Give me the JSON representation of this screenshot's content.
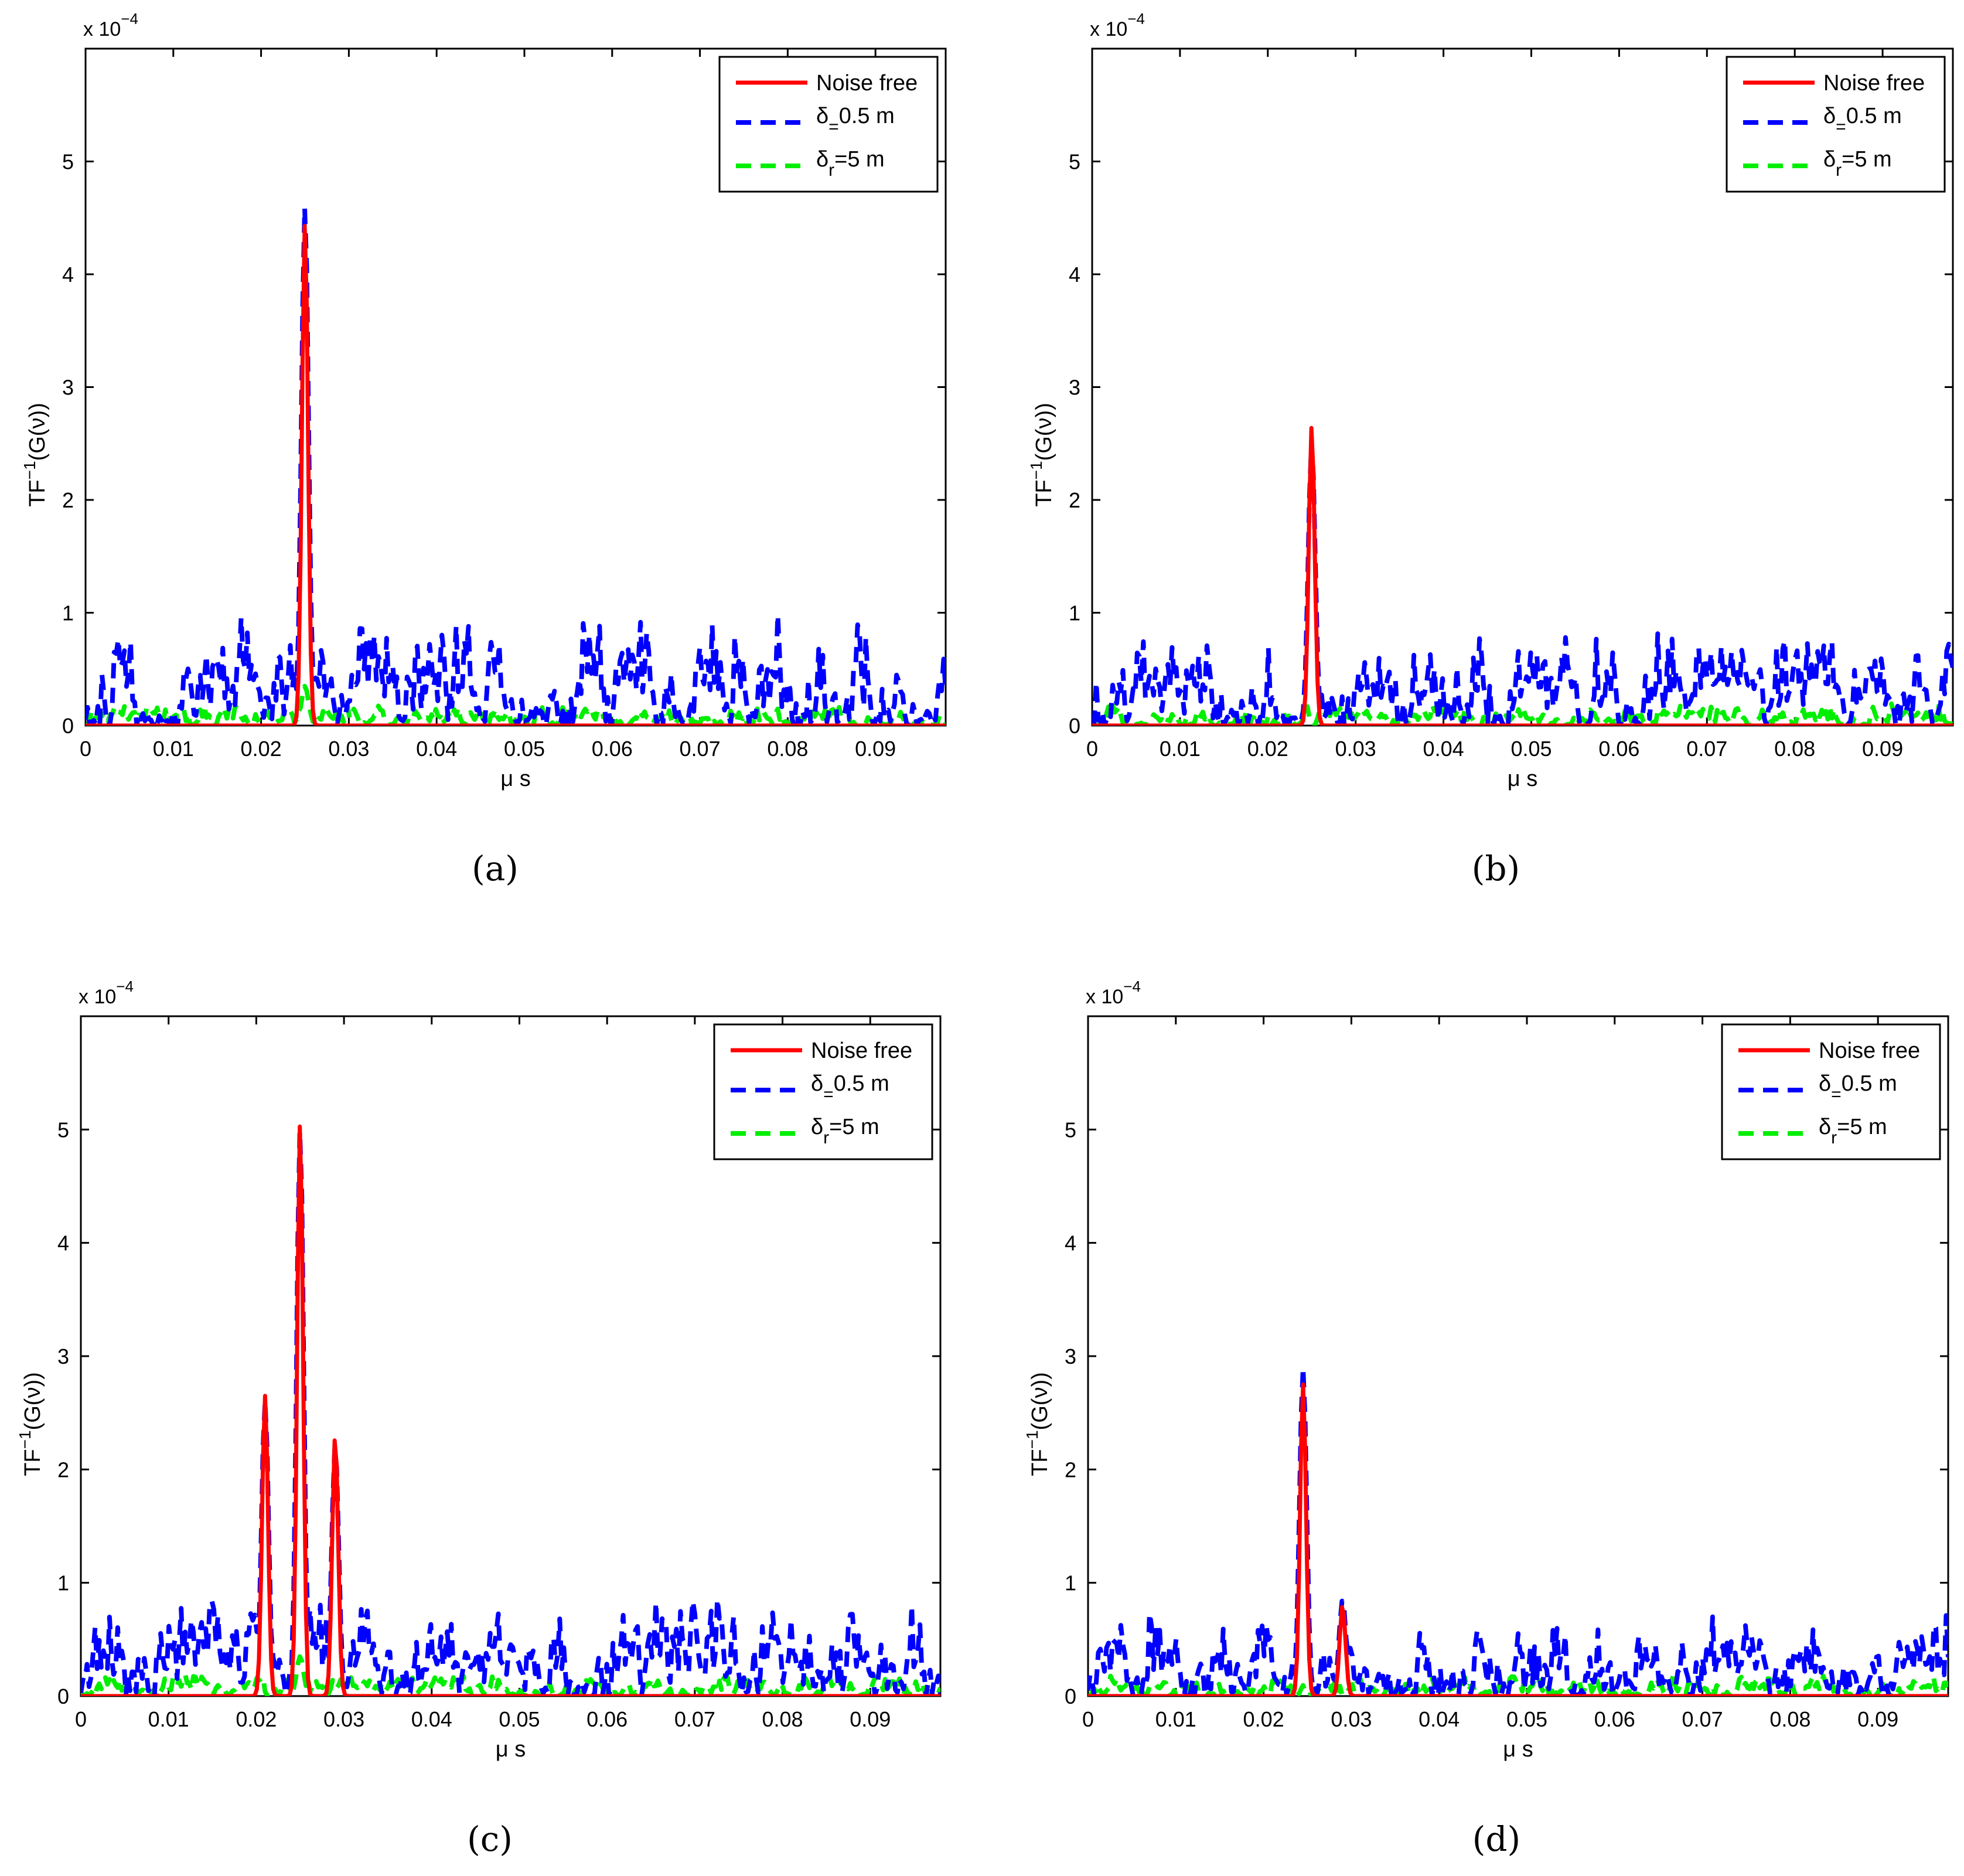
{
  "chart_data": [
    {
      "panel": "a",
      "caption": "(a)",
      "type": "line",
      "ylabel": "TF",
      "ylabel_sup": "−1",
      "ylabel_tail": "(G(ν))",
      "xlabel": "μ s",
      "exponent_base": "x 10",
      "exponent_power": "−4",
      "xlim": [
        0,
        0.098
      ],
      "ylim": [
        0,
        6
      ],
      "xticks": [
        "0",
        "0.01",
        "0.02",
        "0.03",
        "0.04",
        "0.05",
        "0.06",
        "0.07",
        "0.08",
        "0.09"
      ],
      "yticks": [
        "0",
        "1",
        "2",
        "3",
        "4",
        "5"
      ],
      "peaks": [
        {
          "x": 0.025,
          "y": 4.6
        }
      ],
      "series": [
        {
          "name": "Noise free",
          "legend_main": "Noise free",
          "legend_sub": "",
          "color": "#ff0000",
          "dashed": false,
          "peaks": [
            {
              "x": 0.025,
              "y": 4.45
            }
          ]
        },
        {
          "name": "δ=0.5 m",
          "legend_main": "δ",
          "legend_sub": "=",
          "legend_tail": "0.5 m",
          "color": "#0000ff",
          "dashed": true,
          "peaks": [
            {
              "x": 0.025,
              "y": 4.6
            }
          ],
          "noise_max": 1.0
        },
        {
          "name": "δr=5 m",
          "legend_main": "δ",
          "legend_sub": "r",
          "legend_tail": "=5 m",
          "color": "#00ee00",
          "dashed": true,
          "peaks": [
            {
              "x": 0.025,
              "y": 0.35
            }
          ],
          "noise_max": 0.2
        }
      ]
    },
    {
      "panel": "b",
      "caption": "(b)",
      "type": "line",
      "ylabel": "TF",
      "ylabel_sup": "−1",
      "ylabel_tail": "(G(ν))",
      "xlabel": "μ s",
      "exponent_base": "x 10",
      "exponent_power": "−4",
      "xlim": [
        0,
        0.098
      ],
      "ylim": [
        0,
        6
      ],
      "xticks": [
        "0",
        "0.01",
        "0.02",
        "0.03",
        "0.04",
        "0.05",
        "0.06",
        "0.07",
        "0.08",
        "0.09"
      ],
      "yticks": [
        "0",
        "1",
        "2",
        "3",
        "4",
        "5"
      ],
      "series": [
        {
          "name": "Noise free",
          "legend_main": "Noise free",
          "legend_sub": "",
          "color": "#ff0000",
          "dashed": false,
          "peaks": [
            {
              "x": 0.025,
              "y": 2.65
            }
          ]
        },
        {
          "name": "δ=0.5 m",
          "legend_main": "δ",
          "legend_sub": "=",
          "legend_tail": "0.5 m",
          "color": "#0000ff",
          "dashed": true,
          "peaks": [
            {
              "x": 0.025,
              "y": 2.5
            }
          ],
          "noise_max": 0.85
        },
        {
          "name": "δr=5 m",
          "legend_main": "δ",
          "legend_sub": "r",
          "legend_tail": "=5 m",
          "color": "#00ee00",
          "dashed": true,
          "peaks": [],
          "noise_max": 0.2
        }
      ]
    },
    {
      "panel": "c",
      "caption": "(c)",
      "type": "line",
      "ylabel": "TF",
      "ylabel_sup": "−1",
      "ylabel_tail": "(G(ν))",
      "xlabel": "μ s",
      "exponent_base": "x 10",
      "exponent_power": "−4",
      "xlim": [
        0,
        0.098
      ],
      "ylim": [
        0,
        6
      ],
      "xticks": [
        "0",
        "0.01",
        "0.02",
        "0.03",
        "0.04",
        "0.05",
        "0.06",
        "0.07",
        "0.08",
        "0.09"
      ],
      "yticks": [
        "0",
        "1",
        "2",
        "3",
        "4",
        "5"
      ],
      "series": [
        {
          "name": "Noise free",
          "legend_main": "Noise free",
          "legend_sub": "",
          "color": "#ff0000",
          "dashed": false,
          "peaks": [
            {
              "x": 0.021,
              "y": 2.65
            },
            {
              "x": 0.025,
              "y": 5.05
            },
            {
              "x": 0.029,
              "y": 2.3
            }
          ]
        },
        {
          "name": "δ=0.5 m",
          "legend_main": "δ",
          "legend_sub": "=",
          "legend_tail": "0.5 m",
          "color": "#0000ff",
          "dashed": true,
          "peaks": [
            {
              "x": 0.021,
              "y": 2.6
            },
            {
              "x": 0.025,
              "y": 5.0
            },
            {
              "x": 0.029,
              "y": 2.2
            }
          ],
          "noise_max": 0.9
        },
        {
          "name": "δr=5 m",
          "legend_main": "δ",
          "legend_sub": "r",
          "legend_tail": "=5 m",
          "color": "#00ee00",
          "dashed": true,
          "peaks": [
            {
              "x": 0.025,
              "y": 0.35
            }
          ],
          "noise_max": 0.2
        }
      ]
    },
    {
      "panel": "d",
      "caption": "(d)",
      "type": "line",
      "ylabel": "TF",
      "ylabel_sup": "−1",
      "ylabel_tail": "(G(ν))",
      "xlabel": "μ s",
      "exponent_base": "x 10",
      "exponent_power": "−4",
      "xlim": [
        0,
        0.098
      ],
      "ylim": [
        0,
        6
      ],
      "xticks": [
        "0",
        "0.01",
        "0.02",
        "0.03",
        "0.04",
        "0.05",
        "0.06",
        "0.07",
        "0.08",
        "0.09"
      ],
      "yticks": [
        "0",
        "1",
        "2",
        "3",
        "4",
        "5"
      ],
      "series": [
        {
          "name": "Noise free",
          "legend_main": "Noise free",
          "legend_sub": "",
          "color": "#ff0000",
          "dashed": false,
          "peaks": [
            {
              "x": 0.0245,
              "y": 2.75
            },
            {
              "x": 0.029,
              "y": 0.8
            }
          ]
        },
        {
          "name": "δ=0.5 m",
          "legend_main": "δ",
          "legend_sub": "=",
          "legend_tail": "0.5 m",
          "color": "#0000ff",
          "dashed": true,
          "peaks": [
            {
              "x": 0.0245,
              "y": 2.9
            },
            {
              "x": 0.029,
              "y": 0.85
            }
          ],
          "noise_max": 0.75
        },
        {
          "name": "δr=5 m",
          "legend_main": "δ",
          "legend_sub": "r",
          "legend_tail": "=5 m",
          "color": "#00ee00",
          "dashed": true,
          "peaks": [],
          "noise_max": 0.2
        }
      ]
    }
  ]
}
